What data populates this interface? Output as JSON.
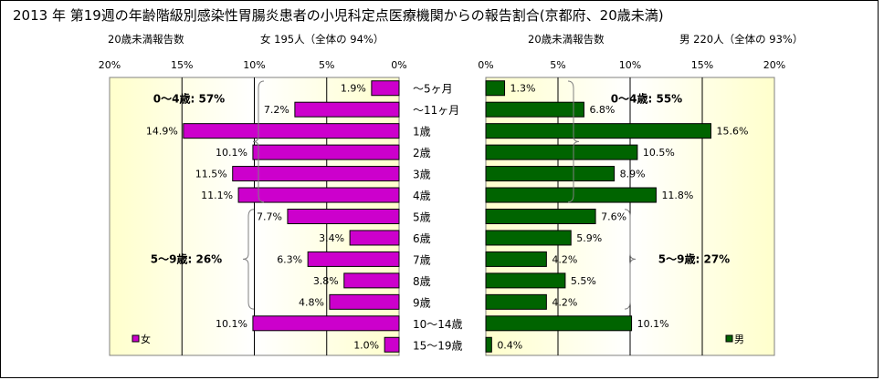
{
  "title": "2013 年 第19週の年齢階級別感染性胃腸炎患者の小児科定点医療機関からの報告割合(京都府、20歳未満)",
  "left_header": {
    "label": "20歳未満報告数",
    "summary": "女 195人（全体の 94%）"
  },
  "right_header": {
    "label": "20歳未満報告数",
    "summary": "男 220人（全体の 93%）"
  },
  "colors": {
    "female": "#cc00cc",
    "male": "#006400",
    "plot_bg_edge": "#ffffcc",
    "plot_bg_center": "#ffffff"
  },
  "chart_data": [
    {
      "type": "bar",
      "orientation": "horizontal-reversed",
      "categories": [
        "～5ヶ月",
        "～11ヶ月",
        "1歳",
        "2歳",
        "3歳",
        "4歳",
        "5歳",
        "6歳",
        "7歳",
        "8歳",
        "9歳",
        "10～14歳",
        "15～19歳"
      ],
      "series": [
        {
          "name": "女",
          "values": [
            1.9,
            7.2,
            14.9,
            10.1,
            11.5,
            11.1,
            7.7,
            3.4,
            6.3,
            3.8,
            4.8,
            10.1,
            1.0
          ],
          "labels": [
            "1.9%",
            "7.2%",
            "14.9%",
            "10.1%",
            "11.5%",
            "11.1%",
            "7.7%",
            "3.4%",
            "6.3%",
            "3.8%",
            "4.8%",
            "10.1%",
            "1.0%"
          ]
        }
      ],
      "xlim": [
        0,
        20
      ],
      "ticks": [
        "0%",
        "5%",
        "10%",
        "15%",
        "20%"
      ],
      "groups": [
        {
          "label": "0～4歳: 57%",
          "from": 0,
          "to": 5
        },
        {
          "label": "5～9歳: 26%",
          "from": 6,
          "to": 10
        }
      ],
      "legend_position": "bottom-left"
    },
    {
      "type": "bar",
      "orientation": "horizontal",
      "categories": [
        "～5ヶ月",
        "～11ヶ月",
        "1歳",
        "2歳",
        "3歳",
        "4歳",
        "5歳",
        "6歳",
        "7歳",
        "8歳",
        "9歳",
        "10～14歳",
        "15～19歳"
      ],
      "series": [
        {
          "name": "男",
          "values": [
            1.3,
            6.8,
            15.6,
            10.5,
            8.9,
            11.8,
            7.6,
            5.9,
            4.2,
            5.5,
            4.2,
            10.1,
            0.4
          ],
          "labels": [
            "1.3%",
            "6.8%",
            "15.6%",
            "10.5%",
            "8.9%",
            "11.8%",
            "7.6%",
            "5.9%",
            "4.2%",
            "5.5%",
            "4.2%",
            "10.1%",
            "0.4%"
          ]
        }
      ],
      "xlim": [
        0,
        20
      ],
      "ticks": [
        "0%",
        "5%",
        "10%",
        "15%",
        "20%"
      ],
      "groups": [
        {
          "label": "0～4歳: 55%",
          "from": 0,
          "to": 5
        },
        {
          "label": "5～9歳: 27%",
          "from": 6,
          "to": 10
        }
      ],
      "legend_position": "bottom-right"
    }
  ]
}
